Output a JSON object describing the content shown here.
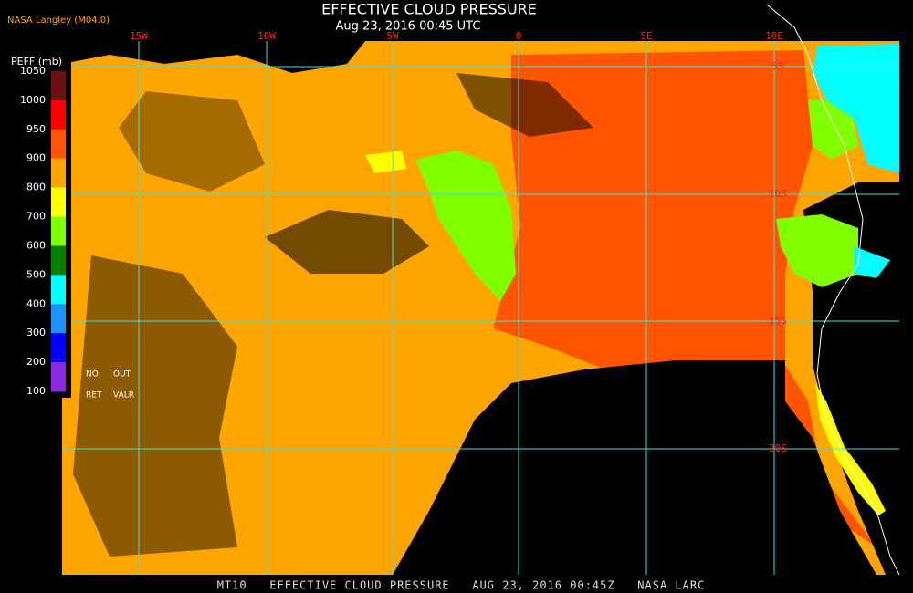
{
  "header": {
    "title": "EFFECTIVE CLOUD PRESSURE",
    "subtitle": "Aug 23, 2016 00:45 UTC",
    "source": "NASA Langley (M04.0)"
  },
  "map": {
    "longitude_labels": [
      "15W",
      "10W",
      "5W",
      "0",
      "5E",
      "10E"
    ],
    "latitude_labels": [
      "5S",
      "10S",
      "15S",
      "20S"
    ]
  },
  "colorbar": {
    "title": "PEFF (mb)",
    "labels": [
      "1050",
      "1000",
      "950",
      "900",
      "800",
      "700",
      "600",
      "500",
      "400",
      "300",
      "200",
      "100"
    ],
    "colors": [
      "#6b0f0f",
      "#ff0000",
      "#ff5500",
      "#ffa500",
      "#ffff00",
      "#80ff00",
      "#008000",
      "#00ffff",
      "#1e90ff",
      "#0000ff",
      "#8a2be2"
    ],
    "notes": [
      "NO",
      "OUT",
      "RET",
      "VALR"
    ]
  },
  "footer": "MT10   EFFECTIVE CLOUD PRESSURE   AUG 23, 2016 00:45Z   NASA LARC"
}
